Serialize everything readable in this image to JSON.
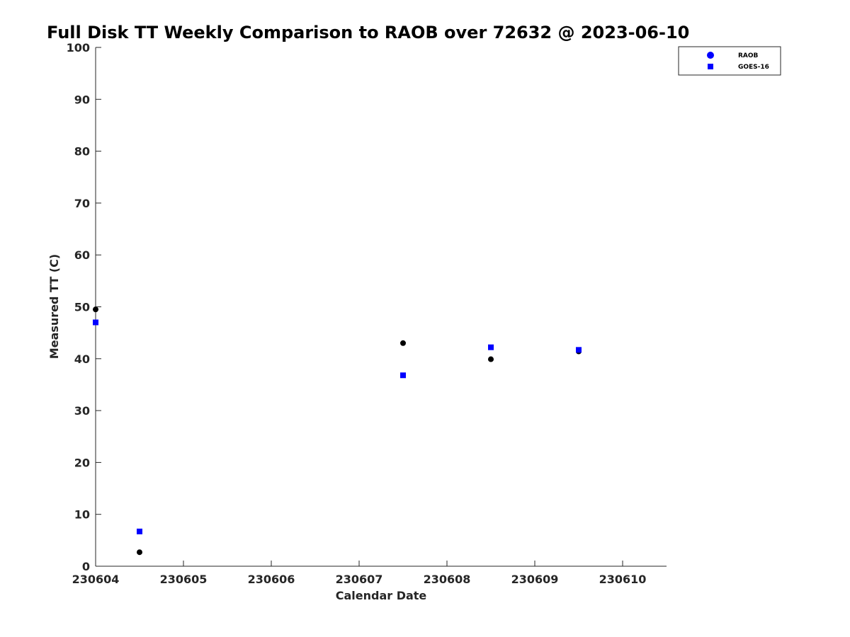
{
  "chart_data": {
    "type": "scatter",
    "title": "Full Disk TT Weekly Comparison to RAOB over 72632 @ 2023-06-10",
    "xlabel": "Calendar Date",
    "ylabel": "Measured TT (C)",
    "xlim": [
      0,
      6.5
    ],
    "ylim": [
      0,
      100
    ],
    "x_ticks": [
      0,
      1,
      2,
      3,
      4,
      5,
      6
    ],
    "x_tick_labels": [
      "230604",
      "230605",
      "230606",
      "230607",
      "230608",
      "230609",
      "230610"
    ],
    "y_ticks": [
      0,
      10,
      20,
      30,
      40,
      50,
      60,
      70,
      80,
      90,
      100
    ],
    "y_tick_labels": [
      "0",
      "10",
      "20",
      "30",
      "40",
      "50",
      "60",
      "70",
      "80",
      "90",
      "100"
    ],
    "grid": false,
    "legend_position": "top-right",
    "legend": [
      {
        "label": "RAOB",
        "marker": "circle",
        "color": "#0000ff"
      },
      {
        "label": "GOES-16",
        "marker": "square",
        "color": "#0000ff"
      }
    ],
    "series": [
      {
        "name": "RAOB",
        "marker": "circle",
        "color": "#000000",
        "x": [
          0.0,
          0.5,
          3.5,
          4.5,
          5.5
        ],
        "values": [
          49.5,
          2.7,
          43.0,
          39.9,
          41.4
        ]
      },
      {
        "name": "GOES-16",
        "marker": "square",
        "color": "#0000ff",
        "x": [
          0.0,
          0.5,
          3.5,
          4.5,
          5.5
        ],
        "values": [
          47.0,
          6.7,
          36.8,
          42.2,
          41.7
        ]
      }
    ]
  }
}
